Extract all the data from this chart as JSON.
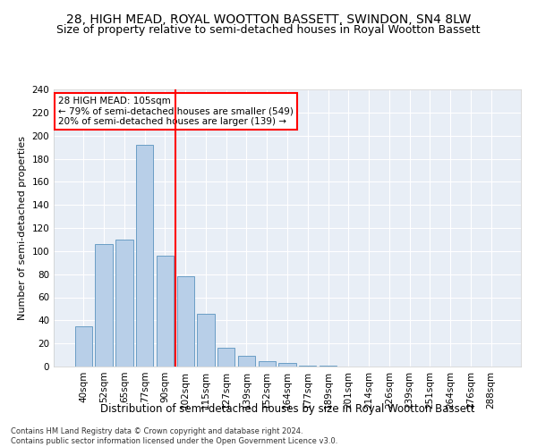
{
  "title": "28, HIGH MEAD, ROYAL WOOTTON BASSETT, SWINDON, SN4 8LW",
  "subtitle": "Size of property relative to semi-detached houses in Royal Wootton Bassett",
  "xlabel": "Distribution of semi-detached houses by size in Royal Wootton Bassett",
  "ylabel": "Number of semi-detached properties",
  "categories": [
    "40sqm",
    "52sqm",
    "65sqm",
    "77sqm",
    "90sqm",
    "102sqm",
    "115sqm",
    "127sqm",
    "139sqm",
    "152sqm",
    "164sqm",
    "177sqm",
    "189sqm",
    "201sqm",
    "214sqm",
    "226sqm",
    "239sqm",
    "251sqm",
    "264sqm",
    "276sqm",
    "288sqm"
  ],
  "values": [
    35,
    106,
    110,
    192,
    96,
    78,
    46,
    16,
    9,
    5,
    3,
    1,
    1,
    0,
    0,
    0,
    0,
    0,
    0,
    0,
    0
  ],
  "bar_color": "#b8cfe8",
  "bar_edge_color": "#6a9ec5",
  "vline_index": 5,
  "vline_color": "red",
  "annotation_text": "28 HIGH MEAD: 105sqm\n← 79% of semi-detached houses are smaller (549)\n20% of semi-detached houses are larger (139) →",
  "annotation_box_color": "white",
  "annotation_box_edge_color": "red",
  "footer": "Contains HM Land Registry data © Crown copyright and database right 2024.\nContains public sector information licensed under the Open Government Licence v3.0.",
  "ylim": [
    0,
    240
  ],
  "yticks": [
    0,
    20,
    40,
    60,
    80,
    100,
    120,
    140,
    160,
    180,
    200,
    220,
    240
  ],
  "background_color": "#e8eef6",
  "grid_color": "white",
  "title_fontsize": 10,
  "subtitle_fontsize": 9,
  "ylabel_fontsize": 8,
  "xlabel_fontsize": 8.5,
  "tick_fontsize": 7.5,
  "footer_fontsize": 6
}
